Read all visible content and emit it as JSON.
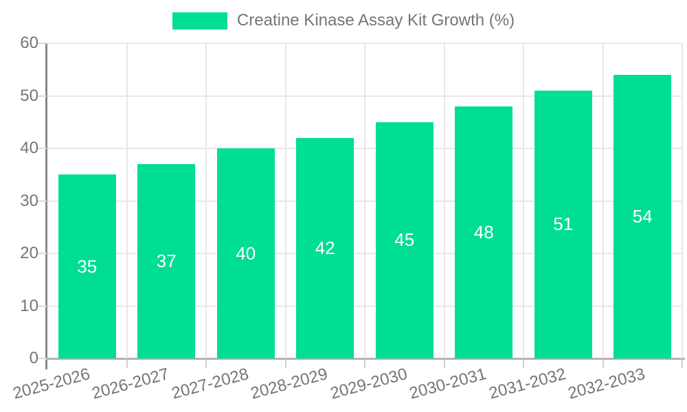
{
  "legend": {
    "label": "Creatine Kinase Assay Kit Growth (%)"
  },
  "chart_data": {
    "type": "bar",
    "title": "Creatine Kinase Assay Kit Growth (%)",
    "categories": [
      "2025-2026",
      "2026-2027",
      "2027-2028",
      "2028-2029",
      "2029-2030",
      "2030-2031",
      "2031-2032",
      "2032-2033"
    ],
    "values": [
      35,
      37,
      40,
      42,
      45,
      48,
      51,
      54
    ],
    "xlabel": "",
    "ylabel": "",
    "ylim": [
      0,
      60
    ],
    "yticks": [
      0,
      10,
      20,
      30,
      40,
      50,
      60
    ],
    "grid": true,
    "legend_position": "top-center",
    "bar_color": "#00DE94",
    "value_label_color": "#ffffff",
    "tick_label_color": "#757575"
  }
}
